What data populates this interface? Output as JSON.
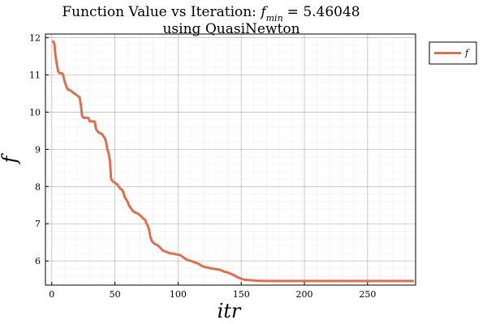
{
  "chart_data": {
    "type": "line",
    "title_line1_prefix": "Function Value vs Iteration: ",
    "title_fmin_symbol": "f",
    "title_fmin_sub": "min",
    "title_fmin_value": "=  5.46048",
    "title_line2": "using QuasiNewton",
    "xlabel": "itr",
    "ylabel": "f",
    "xlim": [
      -5,
      288
    ],
    "ylim": [
      5.35,
      12.1
    ],
    "xticks": [
      0,
      50,
      100,
      150,
      200,
      250
    ],
    "yticks": [
      6,
      7,
      8,
      9,
      10,
      11,
      12
    ],
    "grid": true,
    "minor_grid": true,
    "legend_position": "outside-top-right",
    "series": [
      {
        "name": "f",
        "color": "#d9704f",
        "x": [
          1,
          2,
          3,
          4,
          5,
          6,
          7,
          8,
          9,
          10,
          11,
          12,
          13,
          14,
          16,
          18,
          20,
          22,
          23,
          24,
          25,
          26,
          27,
          28,
          29,
          30,
          32,
          34,
          35,
          36,
          37,
          38,
          40,
          42,
          43,
          44,
          45,
          46,
          47,
          48,
          50,
          52,
          54,
          56,
          57,
          58,
          59,
          60,
          61,
          62,
          63,
          64,
          66,
          68,
          70,
          71,
          72,
          74,
          75,
          76,
          77,
          78,
          79,
          80,
          82,
          84,
          86,
          88,
          90,
          92,
          94,
          96,
          98,
          100,
          102,
          104,
          106,
          108,
          110,
          112,
          114,
          116,
          118,
          120,
          122,
          124,
          126,
          128,
          130,
          132,
          134,
          136,
          138,
          140,
          142,
          144,
          146,
          148,
          150,
          152,
          155,
          158,
          162,
          166,
          170,
          175,
          180,
          190,
          200,
          220,
          240,
          260,
          286
        ],
        "y": [
          11.9,
          11.85,
          11.5,
          11.3,
          11.1,
          11.05,
          11.05,
          11.05,
          11.0,
          10.85,
          10.75,
          10.65,
          10.6,
          10.6,
          10.55,
          10.5,
          10.45,
          10.4,
          10.2,
          9.9,
          9.85,
          9.85,
          9.85,
          9.85,
          9.85,
          9.75,
          9.75,
          9.75,
          9.55,
          9.5,
          9.45,
          9.45,
          9.4,
          9.3,
          9.2,
          9.0,
          8.9,
          8.7,
          8.2,
          8.15,
          8.1,
          8.05,
          7.95,
          7.9,
          7.8,
          7.7,
          7.65,
          7.6,
          7.5,
          7.45,
          7.4,
          7.35,
          7.3,
          7.28,
          7.22,
          7.2,
          7.15,
          7.1,
          7.0,
          6.95,
          6.85,
          6.65,
          6.55,
          6.5,
          6.45,
          6.42,
          6.35,
          6.28,
          6.25,
          6.23,
          6.2,
          6.2,
          6.18,
          6.17,
          6.15,
          6.1,
          6.05,
          6.02,
          6.0,
          5.98,
          5.95,
          5.93,
          5.88,
          5.85,
          5.83,
          5.82,
          5.8,
          5.79,
          5.78,
          5.77,
          5.75,
          5.72,
          5.7,
          5.68,
          5.65,
          5.62,
          5.58,
          5.55,
          5.52,
          5.5,
          5.49,
          5.48,
          5.47,
          5.465,
          5.462,
          5.461,
          5.4605,
          5.4605,
          5.4605,
          5.4605,
          5.4605,
          5.4605,
          5.4605
        ]
      }
    ]
  }
}
